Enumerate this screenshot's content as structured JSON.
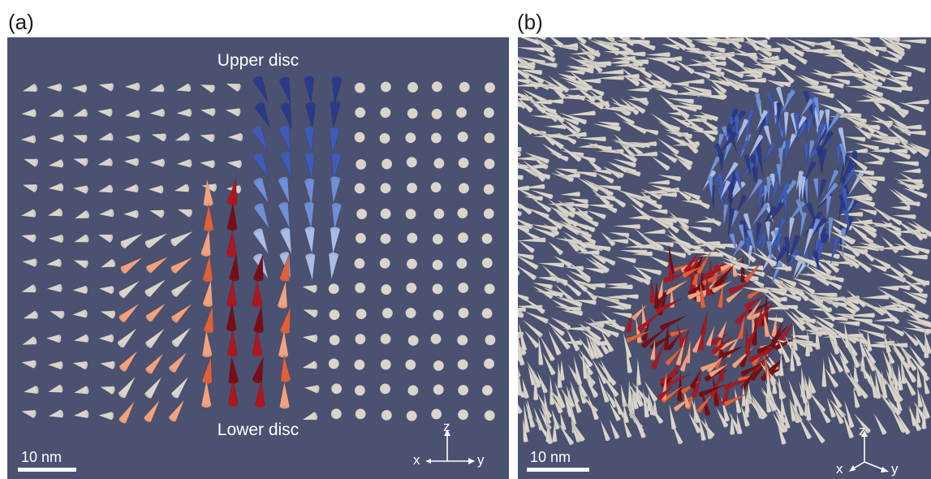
{
  "panel_a": {
    "label": "(a)",
    "upper_disc_label": "Upper disc",
    "lower_disc_label": "Lower disc",
    "scale_bar_label": "10 nm",
    "axes": {
      "z": "z",
      "x": "x",
      "y": "y"
    }
  },
  "panel_b": {
    "label": "(b)",
    "scale_bar_label": "10 nm",
    "axes": {
      "z": "z",
      "x": "x",
      "y": "y"
    }
  },
  "colors": {
    "background": "#4b5170",
    "neutral_arrow": "#d9d5cc",
    "upper_disc_blue": [
      "#2a3a8a",
      "#3f5bb8",
      "#6f8fd6",
      "#a9bde8"
    ],
    "lower_disc_red": [
      "#7a0c14",
      "#b0161e",
      "#e0603a",
      "#f2a27e"
    ]
  }
}
